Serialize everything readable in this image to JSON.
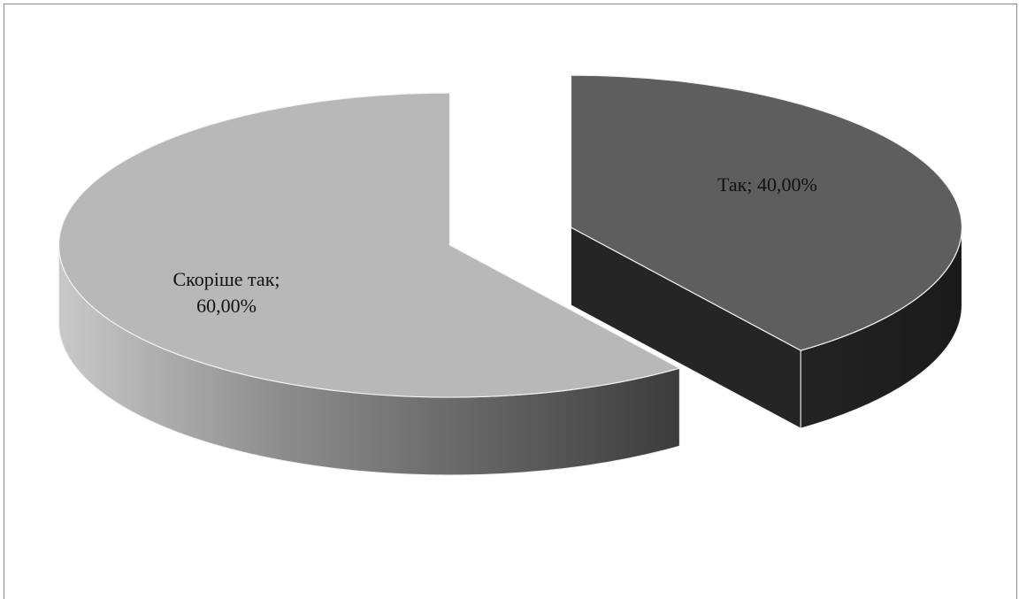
{
  "chart_data": {
    "type": "pie",
    "style": "3d-exploded",
    "slices": [
      {
        "label": "Так",
        "value": 40.0,
        "display": "Так; 40,00%",
        "color": "#5e5e5e"
      },
      {
        "label": "Скоріше так",
        "value": 60.0,
        "display_line1": "Скоріше так;",
        "display_line2": "60,00%",
        "color": "#b8b8b8"
      }
    ],
    "legend": "none",
    "title": ""
  }
}
